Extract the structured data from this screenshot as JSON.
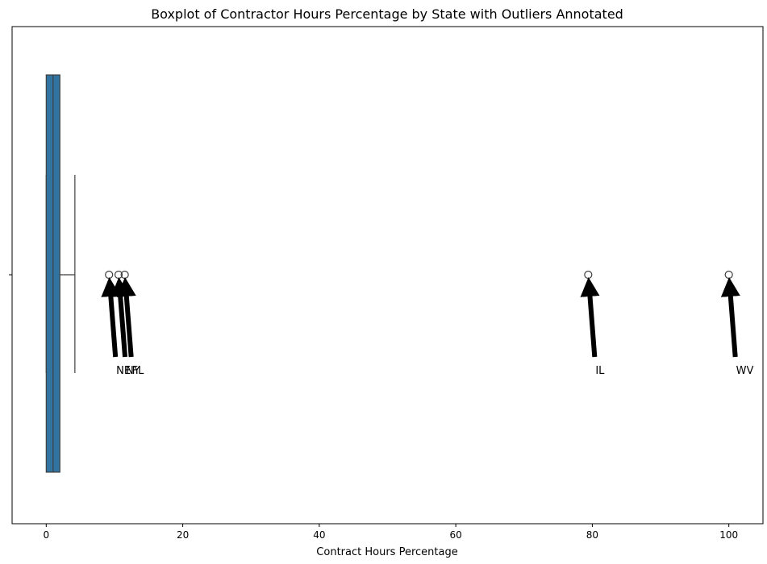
{
  "chart_data": {
    "type": "box",
    "title": "Boxplot of Contractor Hours Percentage by State with Outliers Annotated",
    "xlabel": "Contract Hours Percentage",
    "ylabel": "",
    "xlim": [
      -5,
      105
    ],
    "xticks": [
      0,
      20,
      40,
      60,
      80,
      100
    ],
    "xtick_labels": [
      "0",
      "20",
      "40",
      "60",
      "80",
      "100"
    ],
    "grid": false,
    "box": {
      "whisker_low": 0,
      "q1": 0,
      "median": 1,
      "q3": 2,
      "whisker_high": 4.2,
      "color": "#3274a1"
    },
    "outliers": [
      {
        "value": 9.2,
        "label": "NE"
      },
      {
        "value": 10.6,
        "label": "NY"
      },
      {
        "value": 11.5,
        "label": "FL"
      },
      {
        "value": 79.4,
        "label": "IL"
      },
      {
        "value": 100,
        "label": "WV"
      }
    ]
  }
}
